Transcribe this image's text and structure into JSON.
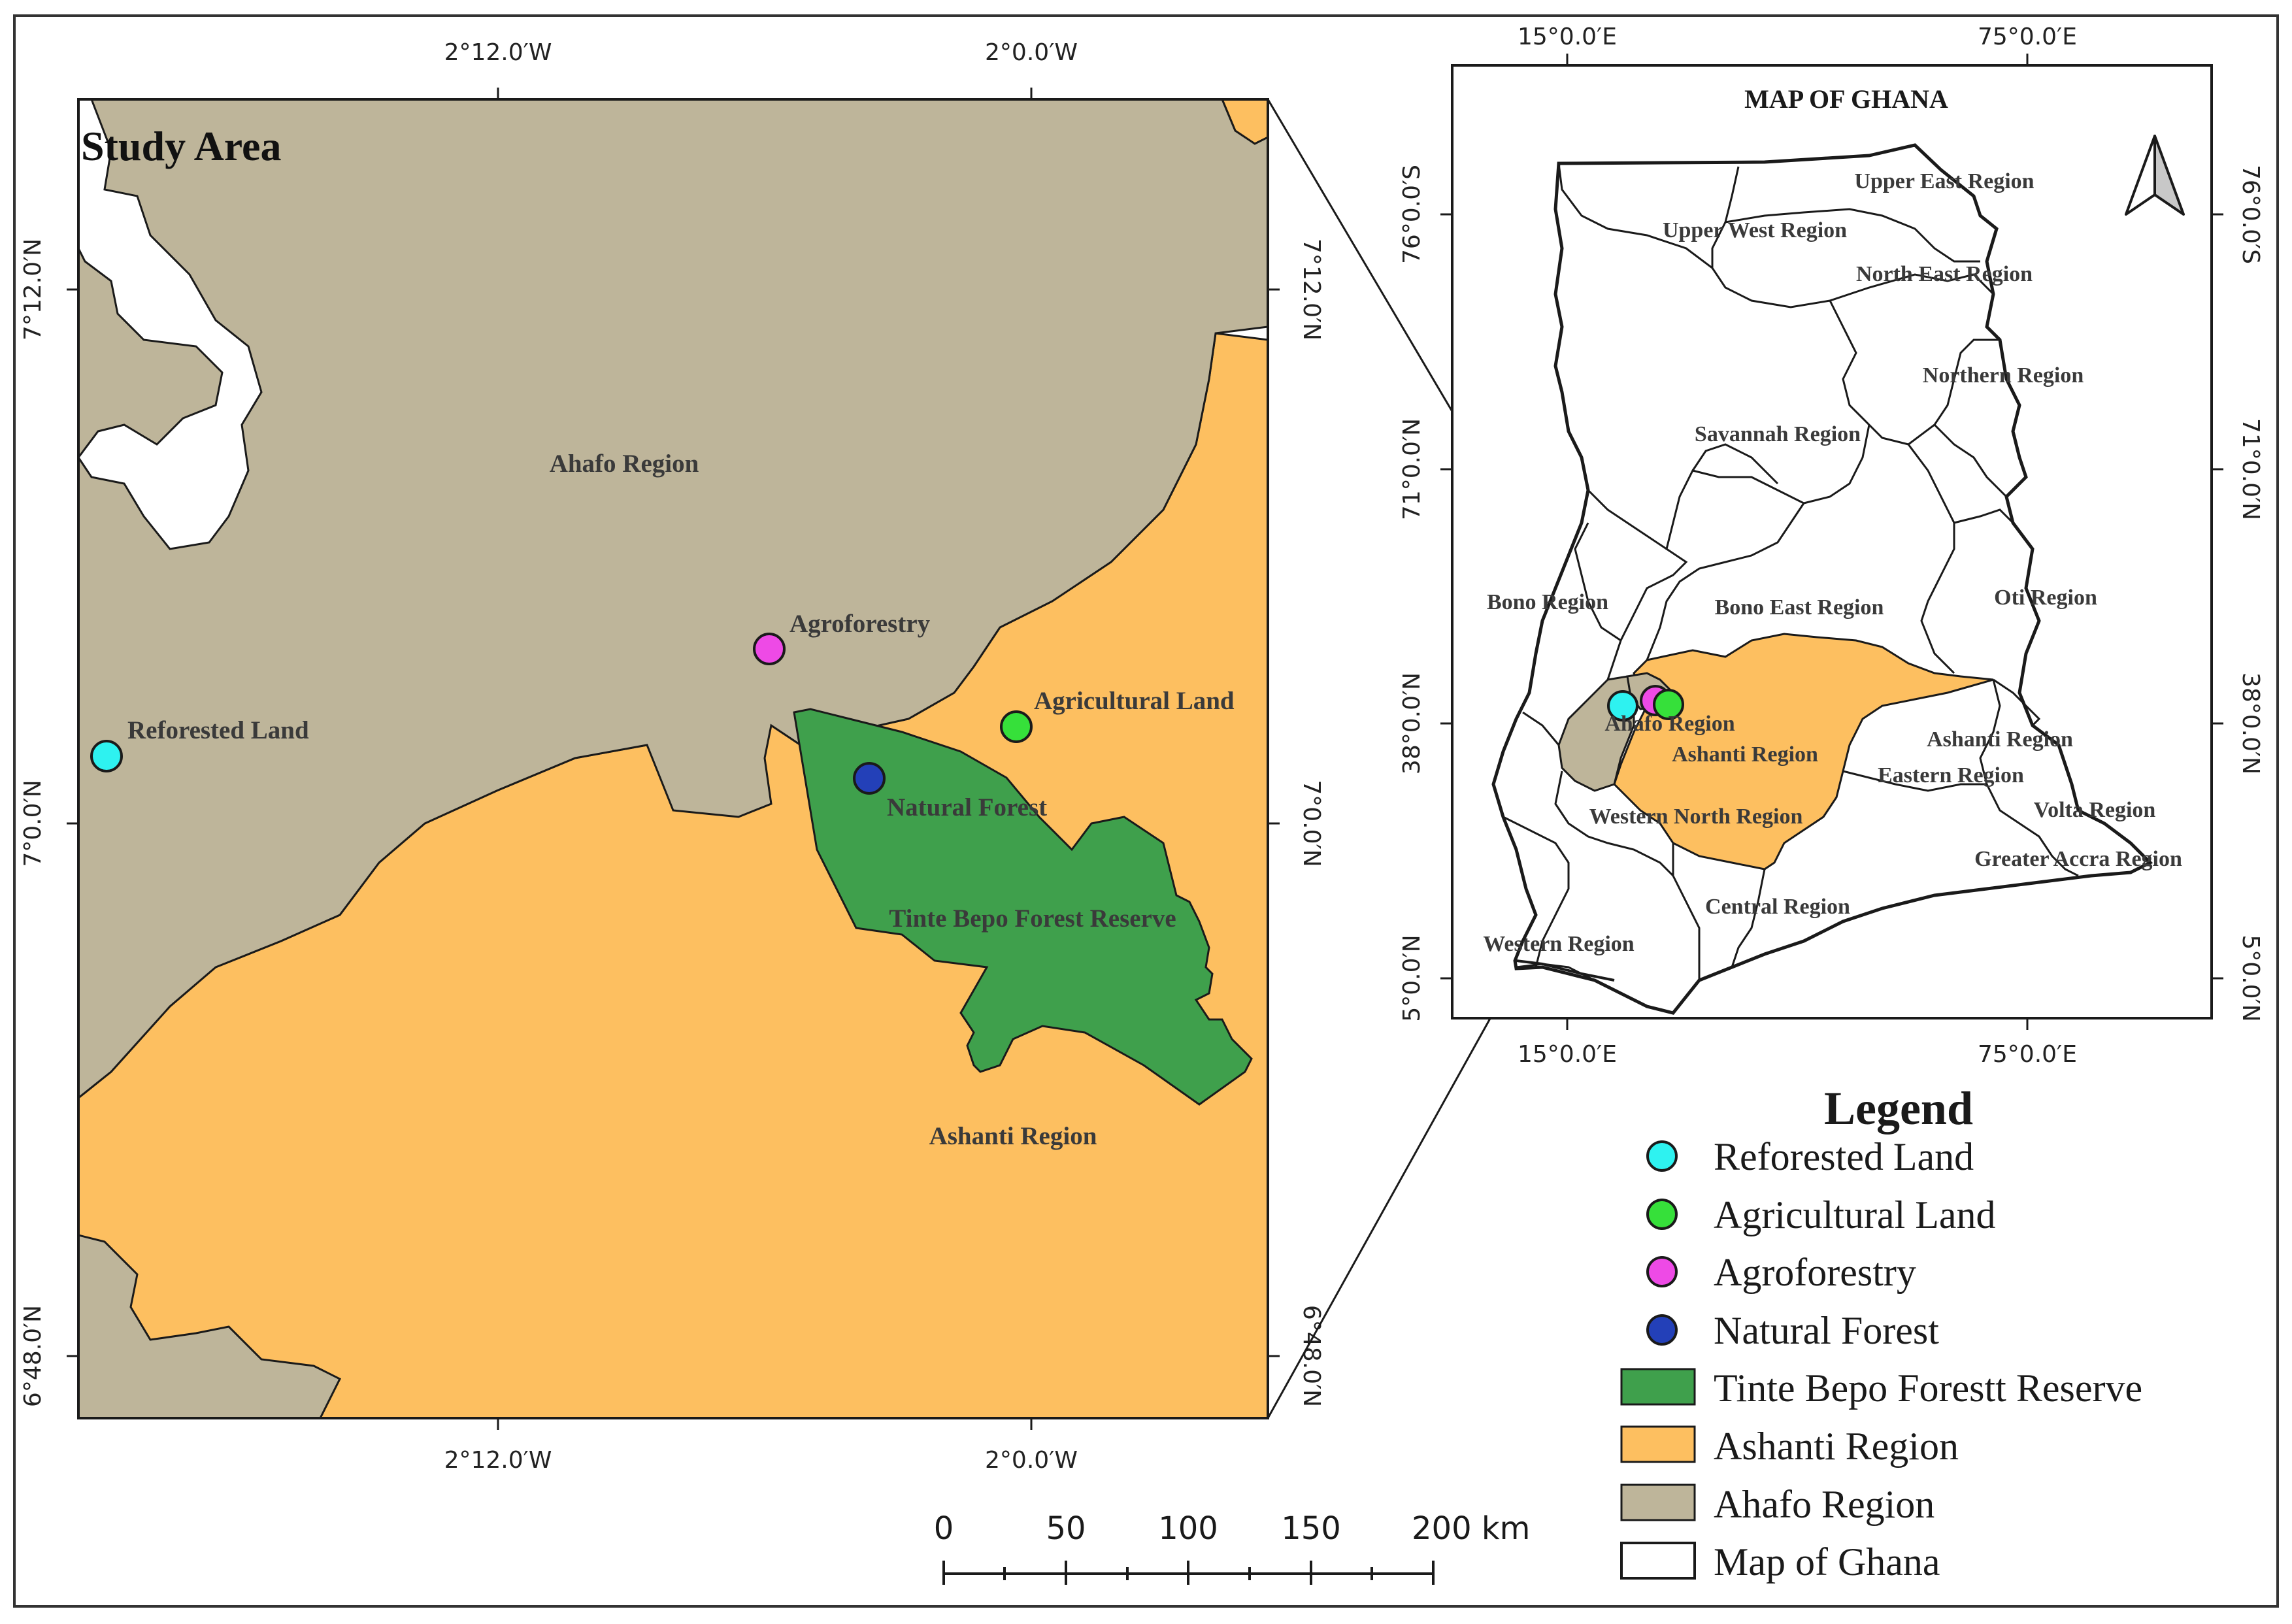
{
  "colors": {
    "ahafo": "#beb59a",
    "ashanti": "#fdbf60",
    "reserve": "#3fa04c",
    "reforested": "#2ef2f0",
    "agricultural": "#36e03a",
    "agroforestry": "#ee4ae6",
    "natural_forest": "#2340b8",
    "outline": "#1a1a1a",
    "land": "#ffffff"
  },
  "study_area": {
    "title": "Study Area",
    "top_ticks": [
      "2°12.0′W",
      "2°0.0′W"
    ],
    "bottom_ticks": [
      "2°12.0′W",
      "2°0.0′W"
    ],
    "left_ticks": [
      "7°12.0′N",
      "7°0.0′N",
      "6°48.0′N"
    ],
    "right_ticks": [
      "7°12.0′N",
      "7°0.0′N",
      "6°48.0′N"
    ],
    "region_labels": {
      "ahafo": "Ahafo Region",
      "ashanti": "Ashanti Region",
      "reserve": "Tinte Bepo Forest Reserve"
    },
    "points": [
      {
        "key": "reforested",
        "label": "Reforested Land"
      },
      {
        "key": "agroforestry",
        "label": "Agroforestry"
      },
      {
        "key": "agricultural",
        "label": "Agricultural Land"
      },
      {
        "key": "natural_forest",
        "label": "Natural Forest"
      }
    ]
  },
  "ghana_map": {
    "title": "MAP OF GHANA",
    "top_ticks": [
      "15°0.0′E",
      "75°0.0′E"
    ],
    "bottom_ticks": [
      "15°0.0′E",
      "75°0.0′E"
    ],
    "left_ticks": [
      "76°0.0′S",
      "71°0.0′N",
      "38°0.0′N",
      "5°0.0′N"
    ],
    "right_ticks": [
      "76°0.0′S",
      "71°0.0′N",
      "38°0.0′N",
      "5°0.0′N"
    ],
    "regions": [
      "Upper East Region",
      "Upper West Region",
      "North East Region",
      "Northern Region",
      "Savannah Region",
      "Bono Region",
      "Bono East Region",
      "Oti Region",
      "Ahafo Region",
      "Ashanti Region",
      "Ashanti Region",
      "Eastern Region",
      "Volta Region",
      "Western North Region",
      "Greater Accra Region",
      "Central Region",
      "Western Region"
    ]
  },
  "legend": {
    "title": "Legend",
    "items": [
      {
        "label": "Reforested Land",
        "symbol": "circle",
        "color": "#2ef2f0"
      },
      {
        "label": "Agricultural Land",
        "symbol": "circle",
        "color": "#36e03a"
      },
      {
        "label": "Agroforestry",
        "symbol": "circle",
        "color": "#ee4ae6"
      },
      {
        "label": "Natural Forest",
        "symbol": "circle",
        "color": "#2340b8"
      },
      {
        "label": "Tinte Bepo Forestt Reserve",
        "symbol": "rect",
        "color": "#3fa04c"
      },
      {
        "label": "Ashanti Region",
        "symbol": "rect",
        "color": "#fdbf60"
      },
      {
        "label": "Ahafo Region",
        "symbol": "rect",
        "color": "#beb59a"
      },
      {
        "label": "Map of Ghana",
        "symbol": "rect",
        "color": "#ffffff"
      }
    ]
  },
  "scale_bar": {
    "ticks": [
      "0",
      "50",
      "100",
      "150",
      "200 km"
    ]
  }
}
